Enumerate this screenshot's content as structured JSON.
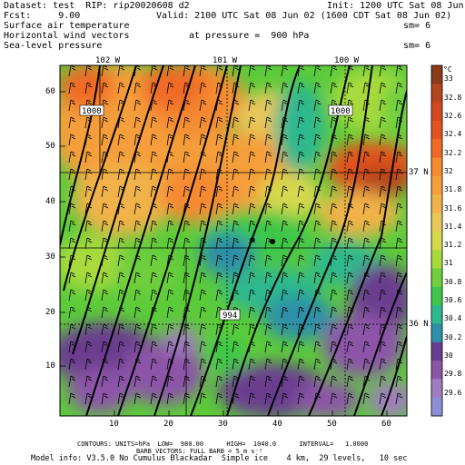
{
  "header": {
    "line1_left": "Dataset: test  RIP: rip20020608 d2",
    "line1_right": "Init: 1200 UTC Sat 08 Jun 02",
    "line2_left": "Fcst:     9.00",
    "line2_right": "Valid: 2100 UTC Sat 08 Jun 02 (1600 CDT Sat 08 Jun 02)",
    "field1": "Surface air temperature",
    "field1_sm": "sm= 6",
    "field2": "Horizontal wind vectors",
    "field2_pressure": "at pressure =  900 hPa",
    "field3": "Sea-level pressure",
    "field3_sm": "sm= 6"
  },
  "top_labels": [
    "102 W",
    "101 W",
    "100 W"
  ],
  "right_labels": [
    "37 N",
    "36 N"
  ],
  "x_ticks": [
    "10",
    "20",
    "30",
    "40",
    "50",
    "60"
  ],
  "y_ticks": [
    "10",
    "20",
    "30",
    "40",
    "50",
    "60"
  ],
  "contour_labels": [
    "1000",
    "1000",
    "994"
  ],
  "colorbar": {
    "unit": "°C",
    "labels": [
      "33",
      "32.8",
      "32.6",
      "32.4",
      "32.2",
      "32",
      "31.8",
      "31.6",
      "31.4",
      "31.2",
      "31",
      "30.8",
      "30.6",
      "30.4",
      "30.2",
      "30",
      "29.8",
      "29.6"
    ],
    "colors": [
      "#8B3A1A",
      "#B5451E",
      "#D2481E",
      "#E3531F",
      "#F06A26",
      "#F58A30",
      "#F59E3A",
      "#F0B24A",
      "#E8C85A",
      "#D6D84E",
      "#A8DA3C",
      "#6FCF3C",
      "#3CC74A",
      "#2DB88E",
      "#2E8FA8",
      "#6A3E8F",
      "#8C55A8",
      "#A07CC0",
      "#8E8FD8"
    ]
  },
  "footer": {
    "line1": "CONTOURS: UNITS=hPa  LOW=  980.00      HIGH=  1040.0      INTERVAL=   1.0000",
    "line2": "BARB VECTORS: FULL BARB = 5 m s⁻¹",
    "line3": "Model info: V3.5.0 No Cumulus Blackadar  Simple ice    4 km,  29 levels,   10 sec"
  }
}
